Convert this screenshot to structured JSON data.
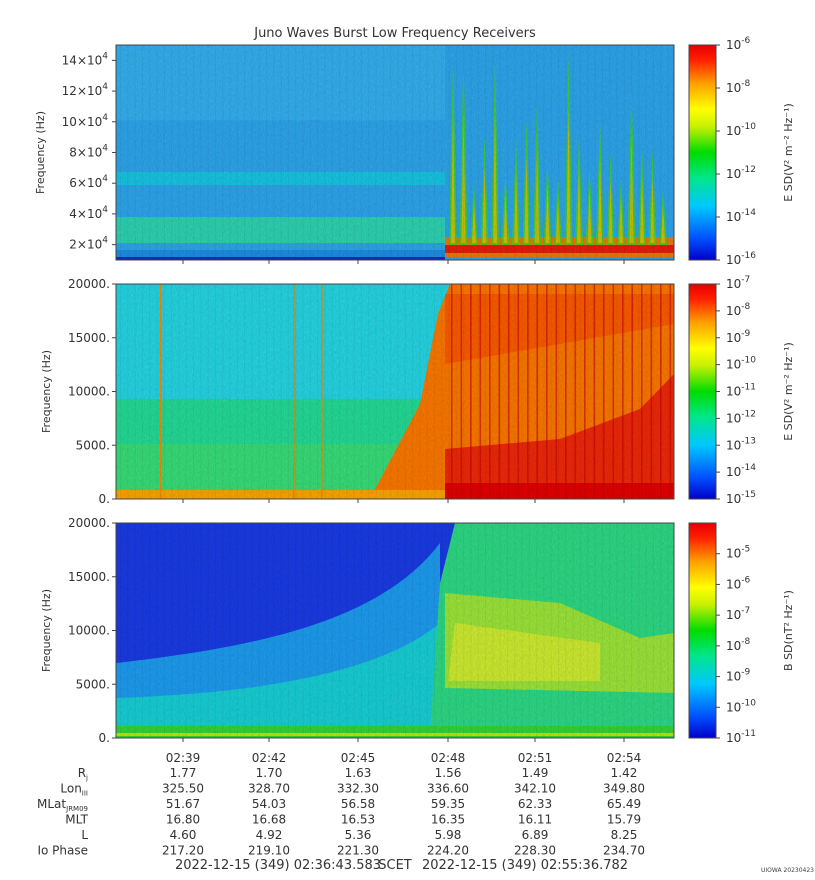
{
  "title": "Juno Waves Burst Low Frequency Receivers",
  "watermark": "UIOWA 20230423",
  "chart_data": [
    {
      "type": "heatmap",
      "panel": 1,
      "ylabel": "Frequency (Hz)",
      "ylim": [
        10000,
        150000
      ],
      "yticks": [
        {
          "v": 20000,
          "m": "2",
          "e": "4"
        },
        {
          "v": 40000,
          "m": "4",
          "e": "4"
        },
        {
          "v": 60000,
          "m": "6",
          "e": "4"
        },
        {
          "v": 80000,
          "m": "8",
          "e": "4"
        },
        {
          "v": 100000,
          "m": "10",
          "e": "4"
        },
        {
          "v": 120000,
          "m": "12",
          "e": "4"
        },
        {
          "v": 140000,
          "m": "14",
          "e": "4"
        }
      ],
      "colorbar": {
        "label": "E SD(V² m⁻² Hz⁻¹)",
        "scale": "log",
        "range_exp": [
          -16,
          -6
        ],
        "ticks": [
          "-6",
          "-8",
          "-10",
          "-12",
          "-14",
          "-16"
        ]
      }
    },
    {
      "type": "heatmap",
      "panel": 2,
      "ylabel": "Frequency (Hz)",
      "ylim": [
        0,
        20000
      ],
      "yticks": [
        "0.",
        "5000.",
        "10000.",
        "15000.",
        "20000."
      ],
      "colorbar": {
        "label": "E SD(V² m⁻² Hz⁻¹)",
        "scale": "log",
        "range_exp": [
          -15,
          -7
        ],
        "ticks": [
          "-7",
          "-8",
          "-9",
          "-10",
          "-11",
          "-12",
          "-13",
          "-14",
          "-15"
        ]
      }
    },
    {
      "type": "heatmap",
      "panel": 3,
      "ylabel": "Frequency (Hz)",
      "ylim": [
        0,
        20000
      ],
      "yticks": [
        "0.",
        "5000.",
        "10000.",
        "15000.",
        "20000."
      ],
      "colorbar": {
        "label": "B SD(nT² Hz⁻¹)",
        "scale": "log",
        "range_exp": [
          -11,
          -4
        ],
        "ticks": [
          "-5",
          "-6",
          "-7",
          "-8",
          "-9",
          "-10",
          "-11"
        ]
      }
    }
  ],
  "time_axis": {
    "labels": [
      "02:39",
      "02:42",
      "02:45",
      "02:48",
      "02:51",
      "02:54"
    ]
  },
  "ephemeris": [
    {
      "label": "Rj",
      "base": "R",
      "sub": "j",
      "values": [
        "1.77",
        "1.70",
        "1.63",
        "1.56",
        "1.49",
        "1.42"
      ]
    },
    {
      "label": "LonIII",
      "base": "Lon",
      "sub": "III",
      "values": [
        "325.50",
        "328.70",
        "332.30",
        "336.60",
        "342.10",
        "349.80"
      ]
    },
    {
      "label": "MLatJRM09",
      "base": "MLat",
      "sub": "JRM09",
      "values": [
        "51.67",
        "54.03",
        "56.58",
        "59.35",
        "62.33",
        "65.49"
      ]
    },
    {
      "label": "MLT",
      "base": "MLT",
      "sub": "",
      "values": [
        "16.80",
        "16.68",
        "16.53",
        "16.35",
        "16.11",
        "15.79"
      ]
    },
    {
      "label": "L",
      "base": "L",
      "sub": "",
      "values": [
        "4.60",
        "4.92",
        "5.36",
        "5.98",
        "6.89",
        "8.25"
      ]
    },
    {
      "label": "Io Phase",
      "base": "Io Phase",
      "sub": "",
      "values": [
        "217.20",
        "219.10",
        "221.30",
        "224.20",
        "228.30",
        "234.70"
      ]
    }
  ],
  "footer": {
    "start": "2022-12-15 (349) 02:36:43.583",
    "mid": "SCET",
    "end": "2022-12-15 (349) 02:55:36.782"
  },
  "colors": {
    "palette": [
      "#0000c8",
      "#0050ff",
      "#00c8ff",
      "#00e68c",
      "#00dc00",
      "#c8f000",
      "#ffff00",
      "#ffa000",
      "#ff2000",
      "#e60000"
    ]
  }
}
